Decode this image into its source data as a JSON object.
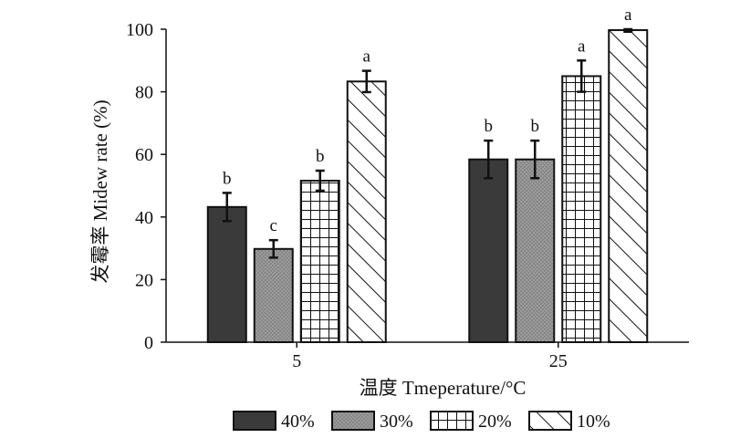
{
  "chart_data": {
    "type": "bar",
    "xlabel": "温度 Tmeperature/°C",
    "ylabel": "发霉率 Midew rate (%)",
    "ylim": [
      0,
      100
    ],
    "yticks": [
      0,
      20,
      40,
      60,
      80,
      100
    ],
    "categories": [
      "5",
      "25"
    ],
    "grid": false,
    "legend_position": "bottom",
    "series": [
      {
        "name": "40%",
        "pattern": "solid-dark",
        "color": "#3a3a3a",
        "values": [
          43.2,
          58.4
        ],
        "errors": [
          4.5,
          6.0
        ],
        "letters": [
          "b",
          "b"
        ]
      },
      {
        "name": "30%",
        "pattern": "dotted-gray",
        "color": "#8c8c8c",
        "values": [
          29.8,
          58.4
        ],
        "errors": [
          2.8,
          6.0
        ],
        "letters": [
          "c",
          "b"
        ]
      },
      {
        "name": "20%",
        "pattern": "grid",
        "color": "#ffffff",
        "values": [
          51.6,
          85.0
        ],
        "errors": [
          3.2,
          5.0
        ],
        "letters": [
          "b",
          "a"
        ]
      },
      {
        "name": "10%",
        "pattern": "diagonal",
        "color": "#ffffff",
        "values": [
          83.3,
          99.7
        ],
        "errors": [
          3.4,
          0.5
        ],
        "letters": [
          "a",
          "a"
        ]
      }
    ]
  }
}
